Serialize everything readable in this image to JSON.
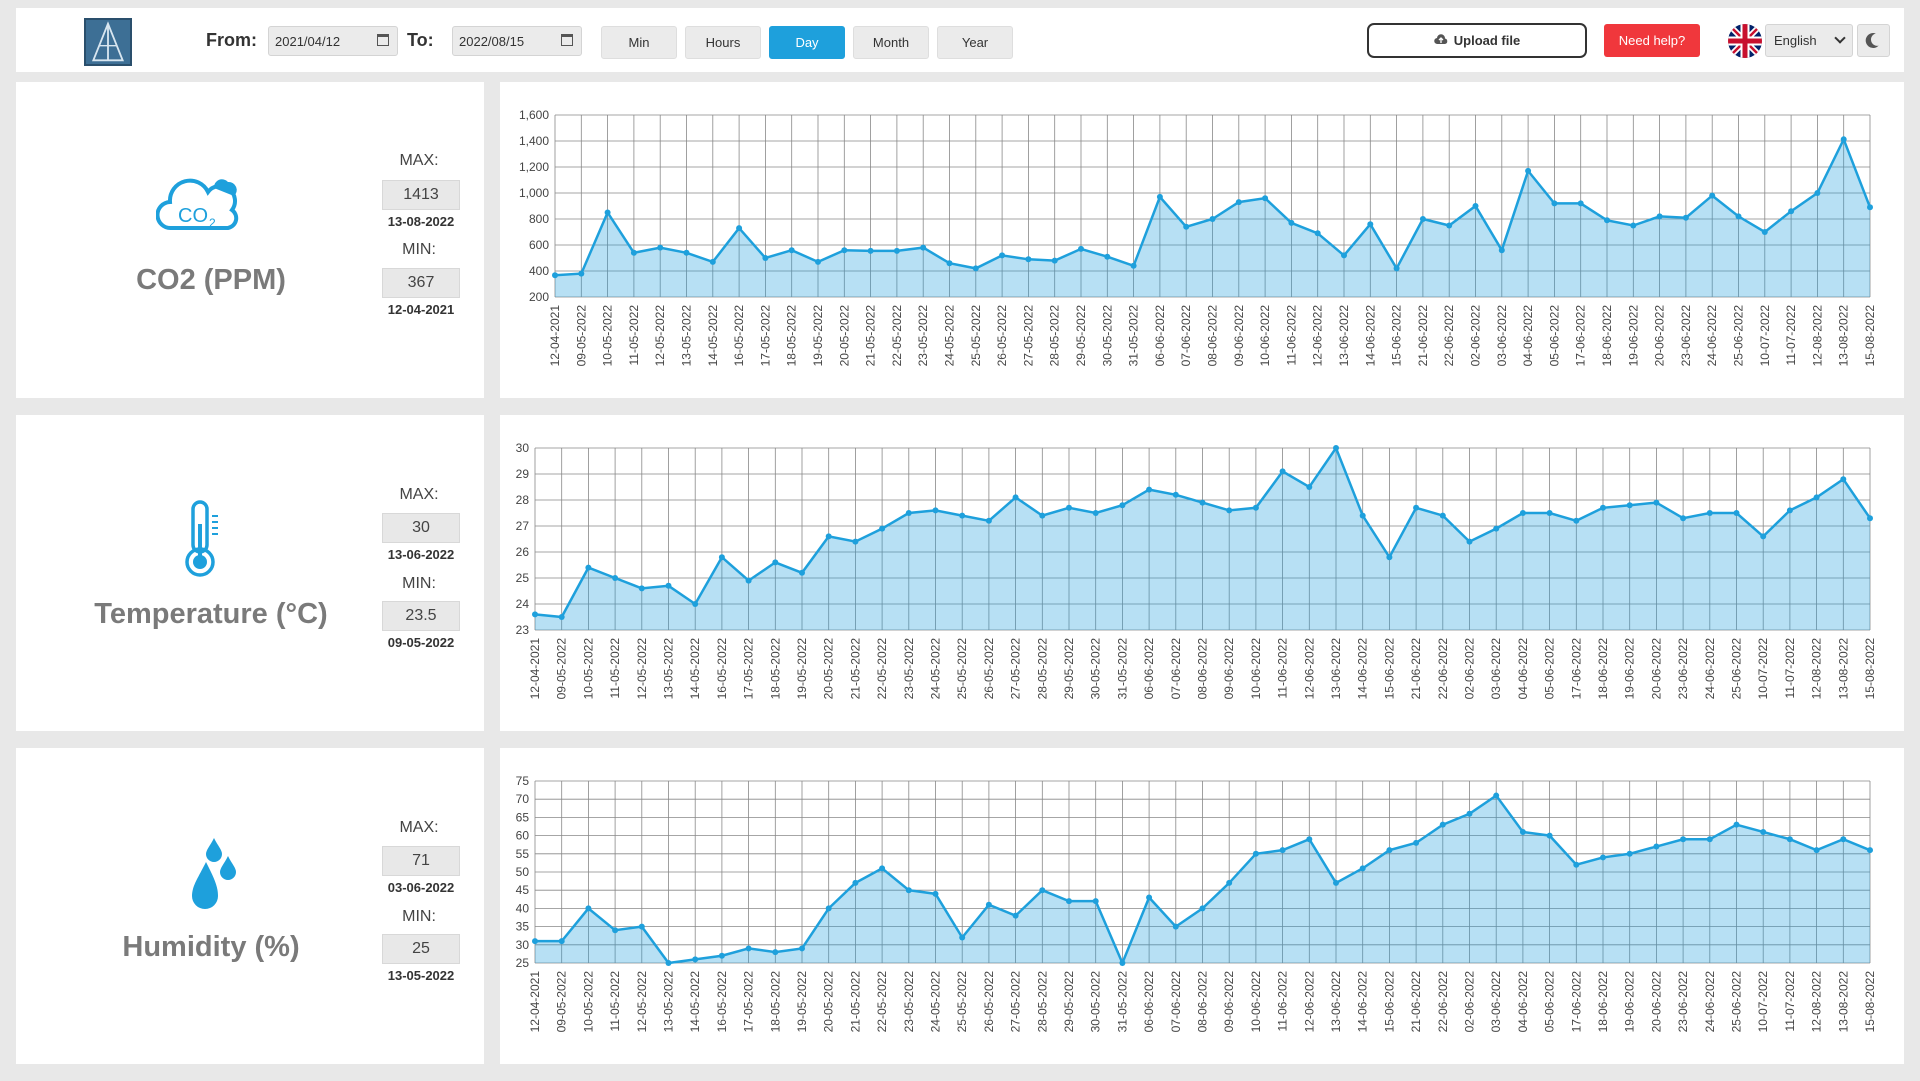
{
  "header": {
    "from_label": "From:",
    "from_value": "2021/04/12",
    "to_label": "To:",
    "to_value": "2022/08/15",
    "periods": [
      "Min",
      "Hours",
      "Day",
      "Month",
      "Year"
    ],
    "active_period": "Day",
    "upload_label": "Upload file",
    "help_label": "Need help?",
    "language": "English",
    "icons": {
      "calendar": "calendar-icon",
      "upload": "cloud-upload-icon",
      "flag": "uk-flag-icon",
      "theme": "moon-icon"
    },
    "colors": {
      "accent": "#1ea0dc",
      "help": "#f0373c"
    }
  },
  "dates": [
    "12-04-2021",
    "09-05-2022",
    "10-05-2022",
    "11-05-2022",
    "12-05-2022",
    "13-05-2022",
    "14-05-2022",
    "16-05-2022",
    "17-05-2022",
    "18-05-2022",
    "19-05-2022",
    "20-05-2022",
    "21-05-2022",
    "22-05-2022",
    "23-05-2022",
    "24-05-2022",
    "25-05-2022",
    "26-05-2022",
    "27-05-2022",
    "28-05-2022",
    "29-05-2022",
    "30-05-2022",
    "31-05-2022",
    "06-06-2022",
    "07-06-2022",
    "08-06-2022",
    "09-06-2022",
    "10-06-2022",
    "11-06-2022",
    "12-06-2022",
    "13-06-2022",
    "14-06-2022",
    "15-06-2022",
    "21-06-2022",
    "22-06-2022",
    "02-06-2022",
    "03-06-2022",
    "04-06-2022",
    "05-06-2022",
    "17-06-2022",
    "18-06-2022",
    "19-06-2022",
    "20-06-2022",
    "23-06-2022",
    "24-06-2022",
    "25-06-2022",
    "10-07-2022",
    "11-07-2022",
    "12-08-2022",
    "13-08-2022",
    "15-08-2022"
  ],
  "sensors": [
    {
      "title": "CO2 (PPM)",
      "icon": "co2-cloud-icon",
      "max_label": "MAX:",
      "max_value": "1413",
      "max_date": "13-08-2022",
      "min_label": "MIN:",
      "min_value": "367",
      "min_date": "12-04-2021"
    },
    {
      "title": "Temperature (°C)",
      "icon": "thermometer-icon",
      "max_label": "MAX:",
      "max_value": "30",
      "max_date": "13-06-2022",
      "min_label": "MIN:",
      "min_value": "23.5",
      "min_date": "09-05-2022"
    },
    {
      "title": "Humidity (%)",
      "icon": "water-drops-icon",
      "max_label": "MAX:",
      "max_value": "71",
      "max_date": "03-06-2022",
      "min_label": "MIN:",
      "min_value": "25",
      "min_date": "13-05-2022"
    }
  ],
  "chart_data": [
    {
      "type": "area",
      "ylim": [
        200,
        1600
      ],
      "yticks": [
        "200",
        "400",
        "600",
        "800",
        "1,000",
        "1,200",
        "1,400",
        "1,600"
      ],
      "ytick_values": [
        200,
        400,
        600,
        800,
        1000,
        1200,
        1400,
        1600
      ],
      "values": [
        367,
        380,
        850,
        540,
        580,
        540,
        470,
        730,
        500,
        560,
        470,
        560,
        555,
        555,
        580,
        460,
        420,
        520,
        490,
        480,
        570,
        510,
        440,
        970,
        740,
        800,
        930,
        960,
        770,
        690,
        520,
        760,
        420,
        800,
        750,
        900,
        560,
        1170,
        920,
        920,
        790,
        750,
        820,
        810,
        980,
        820,
        700,
        860,
        1000,
        1413,
        890
      ],
      "color": "#1ea0dc"
    },
    {
      "type": "area",
      "ylim": [
        23,
        30
      ],
      "yticks": [
        "23",
        "24",
        "25",
        "26",
        "27",
        "28",
        "29",
        "30"
      ],
      "ytick_values": [
        23,
        24,
        25,
        26,
        27,
        28,
        29,
        30
      ],
      "values": [
        23.6,
        23.5,
        25.4,
        25.0,
        24.6,
        24.7,
        24.0,
        25.8,
        24.9,
        25.6,
        25.2,
        26.6,
        26.4,
        26.9,
        27.5,
        27.6,
        27.4,
        27.2,
        28.1,
        27.4,
        27.7,
        27.5,
        27.8,
        28.4,
        28.2,
        27.9,
        27.6,
        27.7,
        29.1,
        28.5,
        30.0,
        27.4,
        25.8,
        27.7,
        27.4,
        26.4,
        26.9,
        27.5,
        27.5,
        27.2,
        27.7,
        27.8,
        27.9,
        27.3,
        27.5,
        27.5,
        26.6,
        27.6,
        28.1,
        28.8,
        27.3
      ],
      "color": "#1ea0dc"
    },
    {
      "type": "area",
      "ylim": [
        25,
        75
      ],
      "yticks": [
        "25",
        "30",
        "35",
        "40",
        "45",
        "50",
        "55",
        "60",
        "65",
        "70",
        "75"
      ],
      "ytick_values": [
        25,
        30,
        35,
        40,
        45,
        50,
        55,
        60,
        65,
        70,
        75
      ],
      "values": [
        31,
        31,
        40,
        34,
        35,
        25,
        26,
        27,
        29,
        28,
        29,
        40,
        47,
        51,
        45,
        44,
        32,
        41,
        38,
        45,
        42,
        42,
        25,
        43,
        35,
        40,
        47,
        55,
        56,
        59,
        47,
        51,
        56,
        58,
        63,
        66,
        71,
        61,
        60,
        52,
        54,
        55,
        57,
        59,
        59,
        63,
        61,
        59,
        56,
        59,
        56
      ],
      "color": "#1ea0dc"
    }
  ]
}
